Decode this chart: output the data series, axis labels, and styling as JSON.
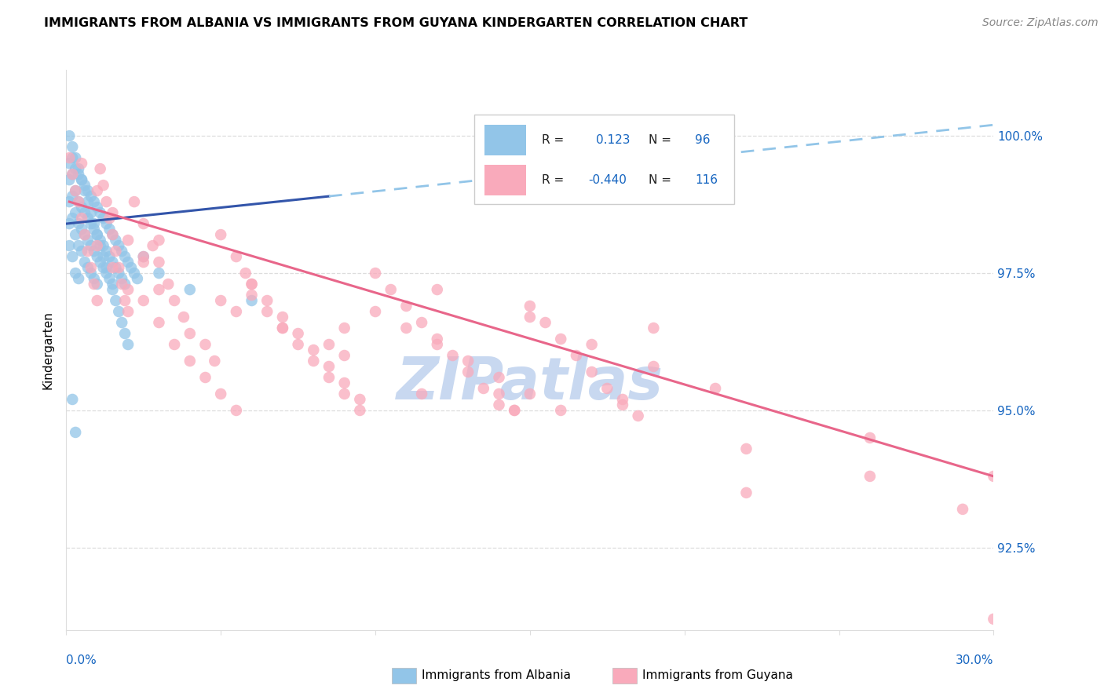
{
  "title": "IMMIGRANTS FROM ALBANIA VS IMMIGRANTS FROM GUYANA KINDERGARTEN CORRELATION CHART",
  "source": "Source: ZipAtlas.com",
  "ylabel": "Kindergarten",
  "xmin": 0.0,
  "xmax": 0.3,
  "ymin": 91.0,
  "ymax": 101.2,
  "albania_R": 0.123,
  "albania_N": 96,
  "guyana_R": -0.44,
  "guyana_N": 116,
  "albania_color": "#92C5E8",
  "guyana_color": "#F9AABB",
  "albania_line_color": "#3355AA",
  "guyana_line_color": "#E8668A",
  "trendline_dashed_color": "#92C5E8",
  "watermark_color": "#C8D8F0",
  "ytick_vals": [
    92.5,
    95.0,
    97.5,
    100.0
  ],
  "ytick_labels": [
    "92.5%",
    "95.0%",
    "97.5%",
    "100.0%"
  ],
  "xtick_vals": [
    0.0,
    0.05,
    0.1,
    0.15,
    0.2,
    0.25,
    0.3
  ],
  "grid_color": "#DDDDDD",
  "albania_scatter_x": [
    0.001,
    0.001,
    0.001,
    0.001,
    0.001,
    0.002,
    0.002,
    0.002,
    0.002,
    0.002,
    0.003,
    0.003,
    0.003,
    0.003,
    0.003,
    0.004,
    0.004,
    0.004,
    0.004,
    0.004,
    0.005,
    0.005,
    0.005,
    0.005,
    0.006,
    0.006,
    0.006,
    0.006,
    0.007,
    0.007,
    0.007,
    0.007,
    0.008,
    0.008,
    0.008,
    0.008,
    0.009,
    0.009,
    0.009,
    0.009,
    0.01,
    0.01,
    0.01,
    0.01,
    0.011,
    0.011,
    0.011,
    0.012,
    0.012,
    0.012,
    0.013,
    0.013,
    0.013,
    0.014,
    0.014,
    0.015,
    0.015,
    0.015,
    0.016,
    0.016,
    0.017,
    0.017,
    0.018,
    0.018,
    0.019,
    0.019,
    0.02,
    0.021,
    0.022,
    0.023,
    0.001,
    0.002,
    0.003,
    0.004,
    0.005,
    0.006,
    0.007,
    0.008,
    0.009,
    0.01,
    0.011,
    0.012,
    0.013,
    0.014,
    0.015,
    0.016,
    0.017,
    0.018,
    0.019,
    0.02,
    0.025,
    0.03,
    0.04,
    0.06,
    0.002,
    0.003
  ],
  "albania_scatter_y": [
    99.5,
    99.2,
    98.8,
    98.4,
    98.0,
    99.6,
    99.3,
    98.9,
    98.5,
    97.8,
    99.4,
    99.0,
    98.6,
    98.2,
    97.5,
    99.3,
    98.8,
    98.4,
    98.0,
    97.4,
    99.2,
    98.7,
    98.3,
    97.9,
    99.1,
    98.6,
    98.2,
    97.7,
    99.0,
    98.5,
    98.1,
    97.6,
    98.9,
    98.4,
    98.0,
    97.5,
    98.8,
    98.3,
    97.9,
    97.4,
    98.7,
    98.2,
    97.8,
    97.3,
    98.6,
    98.1,
    97.7,
    98.5,
    98.0,
    97.6,
    98.4,
    97.9,
    97.5,
    98.3,
    97.8,
    98.2,
    97.7,
    97.3,
    98.1,
    97.6,
    98.0,
    97.5,
    97.9,
    97.4,
    97.8,
    97.3,
    97.7,
    97.6,
    97.5,
    97.4,
    100.0,
    99.8,
    99.6,
    99.4,
    99.2,
    99.0,
    98.8,
    98.6,
    98.4,
    98.2,
    98.0,
    97.8,
    97.6,
    97.4,
    97.2,
    97.0,
    96.8,
    96.6,
    96.4,
    96.2,
    97.8,
    97.5,
    97.2,
    97.0,
    95.2,
    94.6
  ],
  "guyana_scatter_x": [
    0.001,
    0.002,
    0.003,
    0.004,
    0.005,
    0.006,
    0.007,
    0.008,
    0.009,
    0.01,
    0.011,
    0.012,
    0.013,
    0.014,
    0.015,
    0.016,
    0.017,
    0.018,
    0.019,
    0.02,
    0.022,
    0.025,
    0.028,
    0.03,
    0.033,
    0.035,
    0.038,
    0.04,
    0.045,
    0.048,
    0.05,
    0.055,
    0.058,
    0.06,
    0.065,
    0.07,
    0.075,
    0.08,
    0.085,
    0.09,
    0.095,
    0.1,
    0.105,
    0.11,
    0.115,
    0.12,
    0.125,
    0.13,
    0.135,
    0.14,
    0.145,
    0.15,
    0.155,
    0.16,
    0.165,
    0.17,
    0.175,
    0.18,
    0.185,
    0.19,
    0.01,
    0.015,
    0.02,
    0.025,
    0.03,
    0.035,
    0.04,
    0.045,
    0.05,
    0.055,
    0.06,
    0.065,
    0.07,
    0.075,
    0.08,
    0.085,
    0.09,
    0.095,
    0.1,
    0.11,
    0.12,
    0.13,
    0.14,
    0.15,
    0.16,
    0.005,
    0.01,
    0.015,
    0.02,
    0.025,
    0.03,
    0.05,
    0.07,
    0.09,
    0.12,
    0.15,
    0.17,
    0.19,
    0.21,
    0.26,
    0.03,
    0.06,
    0.09,
    0.14,
    0.18,
    0.22,
    0.26,
    0.29,
    0.3,
    0.025,
    0.055,
    0.085,
    0.115,
    0.145,
    0.22,
    0.3
  ],
  "guyana_scatter_y": [
    99.6,
    99.3,
    99.0,
    98.8,
    98.5,
    98.2,
    97.9,
    97.6,
    97.3,
    97.0,
    99.4,
    99.1,
    98.8,
    98.5,
    98.2,
    97.9,
    97.6,
    97.3,
    97.0,
    96.8,
    98.8,
    98.4,
    98.0,
    97.7,
    97.3,
    97.0,
    96.7,
    96.4,
    96.2,
    95.9,
    98.2,
    97.8,
    97.5,
    97.1,
    96.8,
    96.5,
    96.2,
    95.9,
    95.6,
    95.3,
    95.0,
    97.5,
    97.2,
    96.9,
    96.6,
    96.3,
    96.0,
    95.7,
    95.4,
    95.1,
    95.0,
    96.9,
    96.6,
    96.3,
    96.0,
    95.7,
    95.4,
    95.1,
    94.9,
    96.5,
    98.0,
    97.6,
    97.2,
    97.0,
    96.6,
    96.2,
    95.9,
    95.6,
    95.3,
    95.0,
    97.3,
    97.0,
    96.7,
    96.4,
    96.1,
    95.8,
    95.5,
    95.2,
    96.8,
    96.5,
    96.2,
    95.9,
    95.6,
    95.3,
    95.0,
    99.5,
    99.0,
    98.6,
    98.1,
    97.7,
    97.2,
    97.0,
    96.5,
    96.0,
    97.2,
    96.7,
    96.2,
    95.8,
    95.4,
    94.5,
    98.1,
    97.3,
    96.5,
    95.3,
    95.2,
    94.3,
    93.8,
    93.2,
    93.8,
    97.8,
    96.8,
    96.2,
    95.3,
    95.0,
    93.5,
    91.2
  ]
}
